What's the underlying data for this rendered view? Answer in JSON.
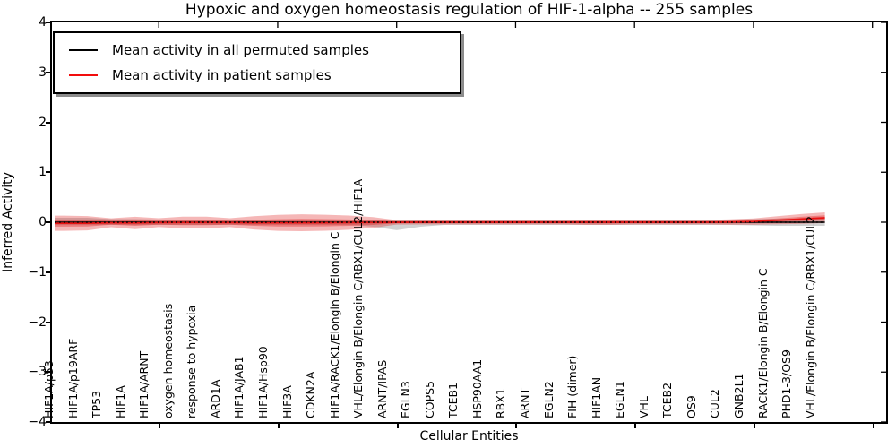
{
  "title": "Hypoxic and oxygen homeostasis regulation of HIF-1-alpha -- 255 samples",
  "axes": {
    "ylabel": "Inferred Activity",
    "xlabel": "Cellular Entities",
    "ylim": [
      -4,
      4
    ],
    "yticks": [
      4,
      3,
      2,
      1,
      0,
      -1,
      -2,
      -3,
      -4
    ]
  },
  "legend": {
    "items": [
      {
        "label": "Mean activity in all permuted samples",
        "color": "#000000"
      },
      {
        "label": "Mean activity in patient samples",
        "color": "#f20d0d"
      }
    ]
  },
  "colors": {
    "patient_line": "#e81111",
    "permuted_line": "#000000",
    "zero_dotted_line": "#000000",
    "patient_band_fill": "#dd0f0f",
    "permuted_band_fill": "#000000",
    "frame": "#000000"
  },
  "chart_data": {
    "type": "area",
    "title": "Hypoxic and oxygen homeostasis regulation of HIF-1-alpha -- 255 samples",
    "xlabel": "Cellular Entities",
    "ylabel": "Inferred Activity",
    "ylim": [
      -4,
      4
    ],
    "grid": false,
    "legend_position": "upper left",
    "sample_count": 255,
    "categories": [
      "HIF1A/p53",
      "HIF1A/p19ARF",
      "TP53",
      "HIF1A",
      "HIF1A/ARNT",
      "oxygen homeostasis",
      "response to hypoxia",
      "ARD1A",
      "HIF1A/JAB1",
      "HIF1A/Hsp90",
      "HIF3A",
      "CDKN2A",
      "HIF1A/RACK1/Elongin B/Elongin C",
      "VHL/Elongin B/Elongin C/RBX1/CUL2/HIF1A",
      "ARNT/IPAS",
      "EGLN3",
      "COPS5",
      "TCEB1",
      "HSP90AA1",
      "RBX1",
      "ARNT",
      "EGLN2",
      "FIH (dimer)",
      "HIF1AN",
      "EGLN1",
      "VHL",
      "TCEB2",
      "OS9",
      "CUL2",
      "GNB2L1",
      "RACK1/Elongin B/Elongin C",
      "PHD1-3/OS9",
      "VHL/Elongin B/Elongin C/RBX1/CUL2"
    ],
    "series": [
      {
        "name": "Mean activity in all permuted samples",
        "color": "#000000",
        "values": [
          0,
          0,
          0,
          0,
          0,
          0,
          0,
          0,
          0,
          0,
          0,
          0,
          0,
          0,
          0,
          0,
          0,
          0,
          0,
          0,
          0,
          0,
          0,
          0,
          0,
          0,
          0,
          0,
          0,
          0,
          0,
          0,
          0
        ]
      },
      {
        "name": "Mean activity in patient samples",
        "color": "#e81111",
        "values": [
          -0.02,
          -0.02,
          -0.01,
          -0.015,
          -0.008,
          -0.005,
          -0.005,
          -0.008,
          -0.012,
          -0.012,
          -0.01,
          -0.01,
          -0.008,
          -0.005,
          -0.002,
          0,
          0,
          0,
          0,
          0,
          0,
          0,
          0,
          0,
          0,
          0,
          0,
          0,
          0.004,
          0.015,
          0.04,
          0.065,
          0.09
        ]
      }
    ],
    "patient_band": {
      "outer_half_width": [
        0.152,
        0.143,
        0.089,
        0.125,
        0.089,
        0.116,
        0.116,
        0.089,
        0.134,
        0.161,
        0.17,
        0.161,
        0.143,
        0.107,
        0.045,
        0.045,
        0.045,
        0.045,
        0.045,
        0.045,
        0.045,
        0.045,
        0.054,
        0.054,
        0.045,
        0.045,
        0.045,
        0.045,
        0.054,
        0.063,
        0.08,
        0.098,
        0.107
      ],
      "inner_ratio": 0.45
    },
    "permuted_band": {
      "upper_half": [
        0.089,
        0.089,
        0.063,
        0.063,
        0.054,
        0.054,
        0.054,
        0.054,
        0.054,
        0.054,
        0.054,
        0.054,
        0.054,
        0.054,
        0.054,
        0.054,
        0.054,
        0.054,
        0.054,
        0.054,
        0.054,
        0.054,
        0.054,
        0.054,
        0.054,
        0.054,
        0.054,
        0.054,
        0.054,
        0.063,
        0.071,
        0.071,
        0.071
      ],
      "lower_half": [
        0.054,
        0.054,
        0.054,
        0.054,
        0.054,
        0.054,
        0.054,
        0.054,
        0.054,
        0.054,
        0.054,
        0.054,
        0.054,
        0.089,
        0.16,
        0.089,
        0.054,
        0.054,
        0.054,
        0.054,
        0.054,
        0.054,
        0.054,
        0.054,
        0.054,
        0.054,
        0.054,
        0.054,
        0.054,
        0.063,
        0.071,
        0.071,
        0.071
      ]
    },
    "x_axis_major_tick_values": [
      5,
      10,
      15,
      20,
      25,
      30,
      35
    ]
  }
}
